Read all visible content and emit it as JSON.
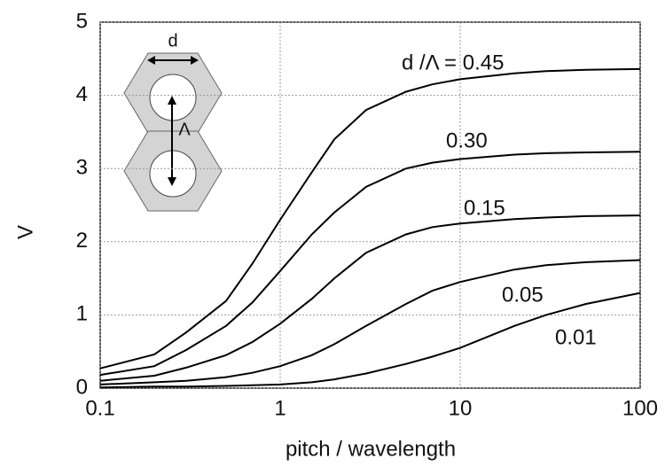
{
  "chart_data": {
    "type": "line",
    "x_label": "pitch / wavelength",
    "y_label": "V",
    "annotations": [
      "d",
      "Λ"
    ],
    "x": [
      0.1,
      0.2,
      0.3,
      0.5,
      0.7,
      1,
      1.5,
      2,
      3,
      5,
      7,
      10,
      20,
      30,
      50,
      100
    ],
    "series": [
      {
        "name": "d /Λ = 0.45",
        "color": "#000000",
        "values": [
          0.27,
          0.46,
          0.76,
          1.19,
          1.7,
          2.3,
          2.95,
          3.4,
          3.8,
          4.05,
          4.15,
          4.22,
          4.3,
          4.33,
          4.35,
          4.36
        ]
      },
      {
        "name": "0.30",
        "color": "#000000",
        "values": [
          0.18,
          0.3,
          0.52,
          0.85,
          1.17,
          1.6,
          2.1,
          2.4,
          2.75,
          3.0,
          3.08,
          3.13,
          3.19,
          3.21,
          3.22,
          3.23
        ]
      },
      {
        "name": "0.15",
        "color": "#000000",
        "values": [
          0.1,
          0.17,
          0.28,
          0.45,
          0.63,
          0.88,
          1.22,
          1.5,
          1.85,
          2.1,
          2.2,
          2.25,
          2.31,
          2.33,
          2.35,
          2.36
        ]
      },
      {
        "name": "0.05",
        "color": "#000000",
        "values": [
          0.05,
          0.08,
          0.1,
          0.15,
          0.21,
          0.3,
          0.45,
          0.6,
          0.85,
          1.15,
          1.33,
          1.45,
          1.62,
          1.68,
          1.72,
          1.75
        ]
      },
      {
        "name": "0.01",
        "color": "#000000",
        "values": [
          0.01,
          0.02,
          0.02,
          0.03,
          0.04,
          0.05,
          0.08,
          0.12,
          0.2,
          0.33,
          0.43,
          0.55,
          0.85,
          1.0,
          1.15,
          1.3
        ]
      }
    ],
    "xlim": [
      0.1,
      100
    ],
    "xticks": [
      0.1,
      1,
      10,
      100
    ],
    "xscale": "log",
    "ylim": [
      0,
      5
    ],
    "yticks": [
      0,
      1,
      2,
      3,
      4,
      5
    ],
    "grid": true
  }
}
